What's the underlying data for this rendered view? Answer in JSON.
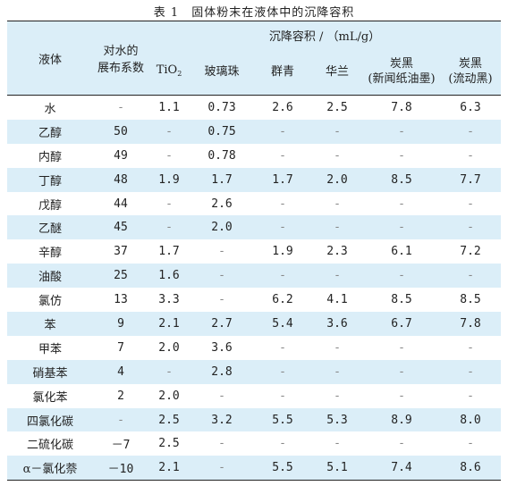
{
  "caption": "表 1　固体粉末在液体中的沉降容积",
  "header": {
    "liquid": "液体",
    "coef_line1": "对水的",
    "coef_line2": "展布系数",
    "group": "沉降容积 / （mL/g）",
    "tio2_main": "TiO",
    "tio2_sub": "2",
    "glass": "玻璃珠",
    "ultramarine": "群青",
    "hualan": "华兰",
    "cb1_line1": "炭黑",
    "cb1_line2": "(新闻纸油墨)",
    "cb2_line1": "炭黑",
    "cb2_line2": "(流动黑)"
  },
  "rows": [
    [
      "水",
      "-",
      "1.1",
      "0.73",
      "2.6",
      "2.5",
      "7.8",
      "6.3"
    ],
    [
      "乙醇",
      "50",
      "-",
      "0.75",
      "-",
      "-",
      "-",
      "-"
    ],
    [
      "内醇",
      "49",
      "-",
      "0.78",
      "-",
      "-",
      "-",
      "-"
    ],
    [
      "丁醇",
      "48",
      "1.9",
      "1.7",
      "1.7",
      "2.0",
      "8.5",
      "7.7"
    ],
    [
      "戊醇",
      "44",
      "-",
      "2.6",
      "-",
      "-",
      "-",
      "-"
    ],
    [
      "乙醚",
      "45",
      "-",
      "2.0",
      "-",
      "-",
      "-",
      "-"
    ],
    [
      "辛醇",
      "37",
      "1.7",
      "-",
      "1.9",
      "2.3",
      "6.1",
      "7.2"
    ],
    [
      "油酸",
      "25",
      "1.6",
      "-",
      "-",
      "-",
      "-",
      "-"
    ],
    [
      "氯仿",
      "13",
      "3.3",
      "-",
      "6.2",
      "4.1",
      "8.5",
      "8.5"
    ],
    [
      "苯",
      "9",
      "2.1",
      "2.7",
      "5.4",
      "3.6",
      "6.7",
      "7.8"
    ],
    [
      "甲苯",
      "7",
      "2.0",
      "3.6",
      "-",
      "-",
      "-",
      "-"
    ],
    [
      "硝基苯",
      "4",
      "-",
      "2.8",
      "-",
      "-",
      "-",
      "-"
    ],
    [
      "氯化苯",
      "2",
      "2.0",
      "-",
      "-",
      "-",
      "-",
      "-"
    ],
    [
      "四氯化碳",
      "-",
      "2.5",
      "3.2",
      "5.5",
      "5.3",
      "8.9",
      "8.0"
    ],
    [
      "二硫化碳",
      "－7",
      "2.5",
      "-",
      "-",
      "-",
      "-",
      "-"
    ],
    [
      "α－氯化萘",
      "－10",
      "2.1",
      "-",
      "5.5",
      "5.1",
      "7.4",
      "8.6"
    ]
  ]
}
